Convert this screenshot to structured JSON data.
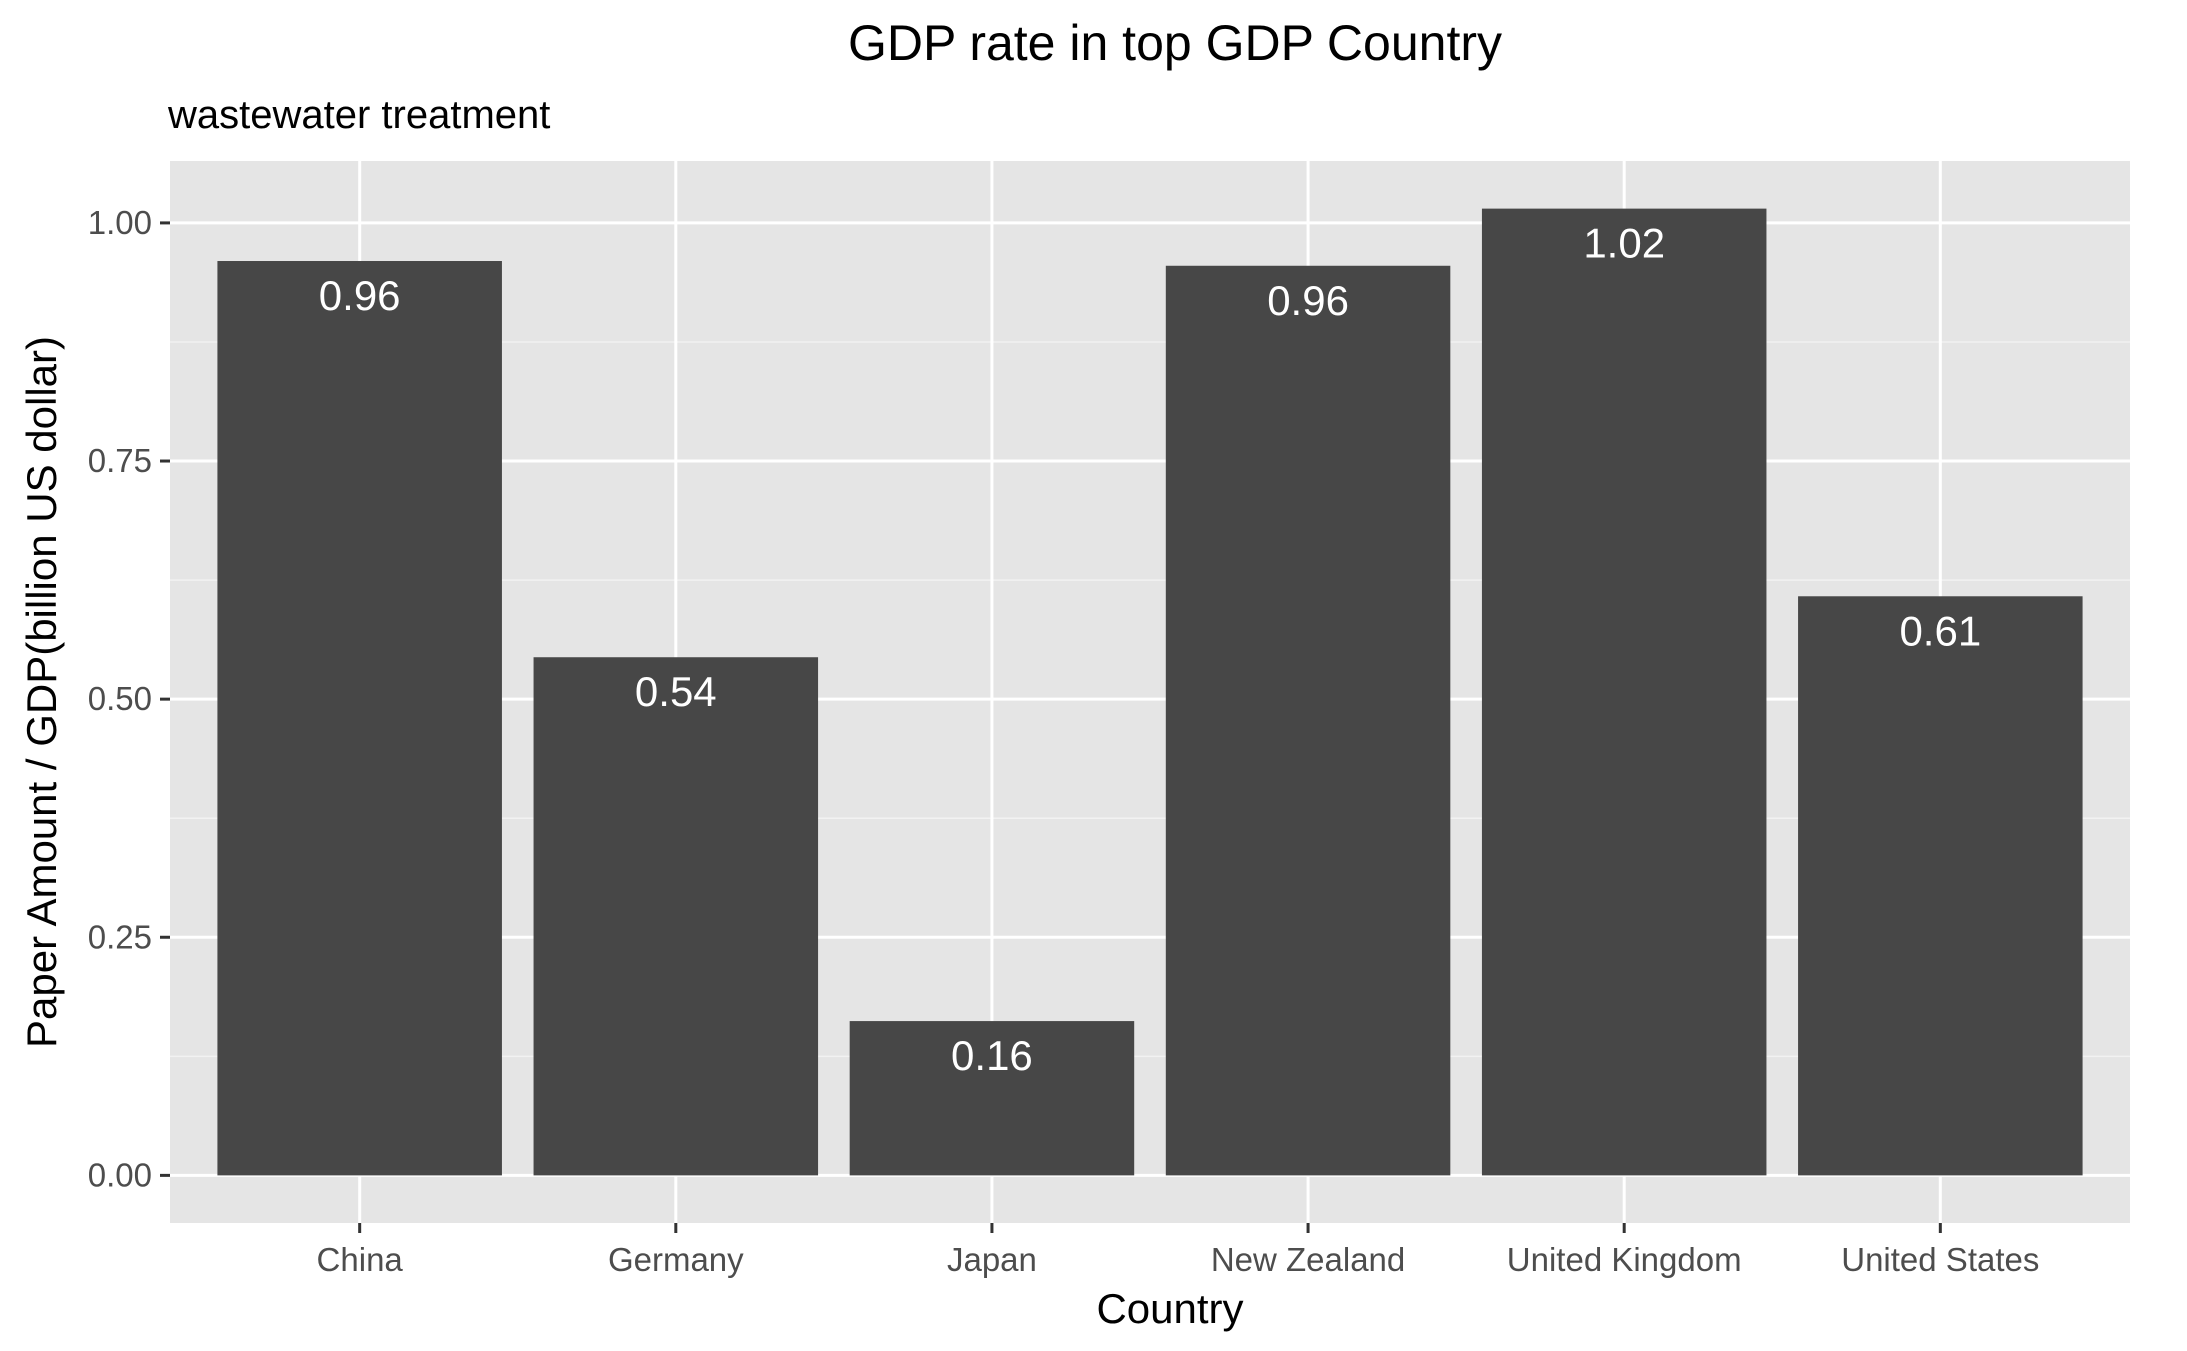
{
  "chart_data": {
    "type": "bar",
    "title": "GDP rate in top GDP Country",
    "subtitle": "wastewater treatment",
    "xlabel": "Country",
    "ylabel": "Paper Amount / GDP(billion US dollar)",
    "categories": [
      "China",
      "Germany",
      "Japan",
      "New Zealand",
      "United Kingdom",
      "United States"
    ],
    "values": [
      0.96,
      0.544,
      0.162,
      0.955,
      1.015,
      0.608
    ],
    "value_labels": [
      "0.96",
      "0.54",
      "0.16",
      "0.96",
      "1.02",
      "0.61"
    ],
    "ylim": [
      -0.05,
      1.065
    ],
    "yticks": [
      0,
      0.25,
      0.5,
      0.75,
      1.0
    ],
    "ytick_labels": [
      "0.00",
      "0.25",
      "0.50",
      "0.75",
      "1.00"
    ],
    "grid": true,
    "legend": "none",
    "colors": {
      "bar": "#474747",
      "panel": "#e5e5e5",
      "grid_major": "#ffffff",
      "grid_minor": "#f2f2f2",
      "tick_text": "#4d4d4d",
      "bar_label": "#ffffff"
    }
  }
}
